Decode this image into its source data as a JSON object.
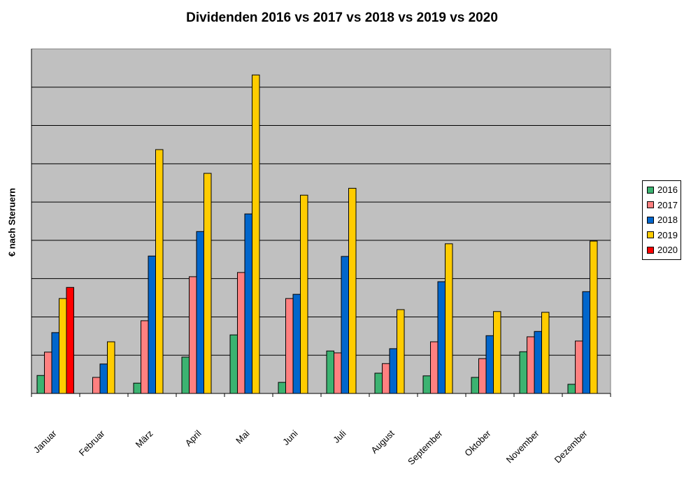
{
  "chart_data": {
    "type": "bar",
    "title": "Dividenden 2016 vs 2017 vs 2018 vs 2019 vs 2020",
    "xlabel": "",
    "ylabel": "€ nach Steruern",
    "ylim": [
      0,
      9
    ],
    "grid": true,
    "legend": "right",
    "categories": [
      "Januar",
      "Februar",
      "März",
      "April",
      "Mai",
      "Juni",
      "Juli",
      "August",
      "September",
      "Oktober",
      "November",
      "Dezember"
    ],
    "series": [
      {
        "name": "2016",
        "color": "#3cb371",
        "values": [
          0.47,
          0,
          0.27,
          0.95,
          1.53,
          0.29,
          1.11,
          0.53,
          0.46,
          0.42,
          1.09,
          0.24
        ]
      },
      {
        "name": "2017",
        "color": "#ff8080",
        "values": [
          1.08,
          0.42,
          1.9,
          3.05,
          3.16,
          2.48,
          1.06,
          0.78,
          1.35,
          0.91,
          1.48,
          1.37
        ]
      },
      {
        "name": "2018",
        "color": "#0066cc",
        "values": [
          1.59,
          0.77,
          3.59,
          4.23,
          4.69,
          2.59,
          3.58,
          1.17,
          2.92,
          1.51,
          1.62,
          2.66
        ]
      },
      {
        "name": "2019",
        "color": "#ffcc00",
        "values": [
          2.48,
          1.35,
          6.37,
          5.75,
          8.32,
          5.18,
          5.36,
          2.19,
          3.91,
          2.14,
          2.12,
          3.98
        ]
      },
      {
        "name": "2020",
        "color": "#ff0000",
        "values": [
          2.77,
          null,
          null,
          null,
          null,
          null,
          null,
          null,
          null,
          null,
          null,
          null
        ]
      }
    ],
    "plot_background": "#c0c0c0"
  }
}
